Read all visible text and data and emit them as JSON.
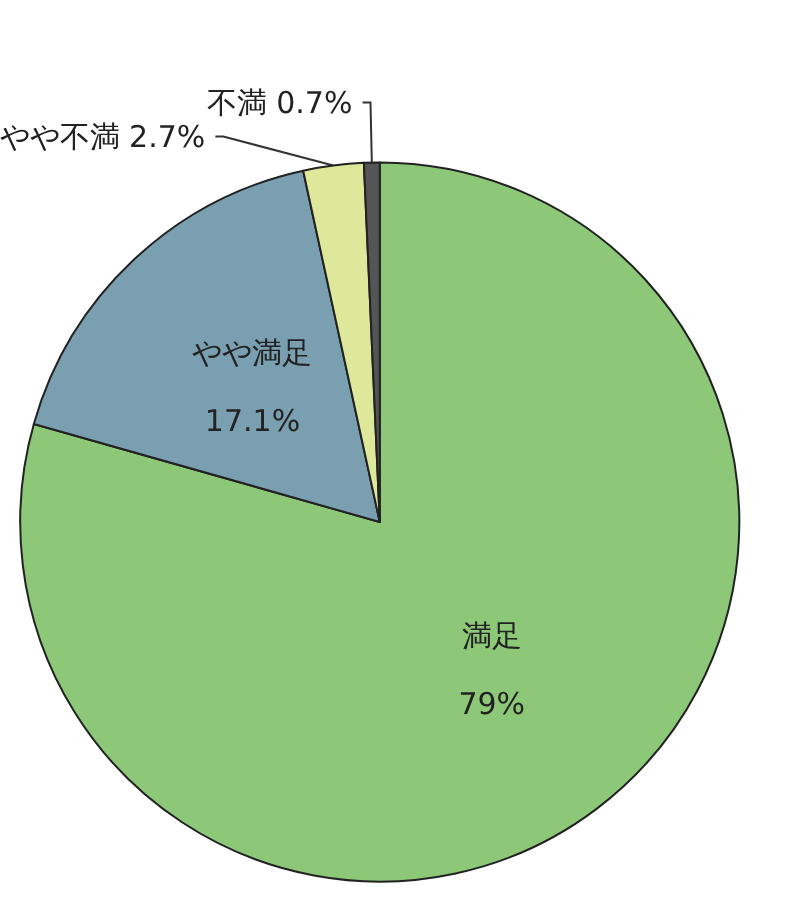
{
  "chart_data": {
    "type": "pie",
    "categories": [
      "満足",
      "やや満足",
      "やや不満",
      "不満"
    ],
    "values": [
      79,
      17.1,
      2.7,
      0.7
    ],
    "colors": [
      "#8cc878",
      "#7a9fb0",
      "#dde89a",
      "#555555"
    ],
    "value_labels": [
      "79%",
      "17.1%",
      "2.7%",
      "0.7%"
    ],
    "legend": false
  }
}
